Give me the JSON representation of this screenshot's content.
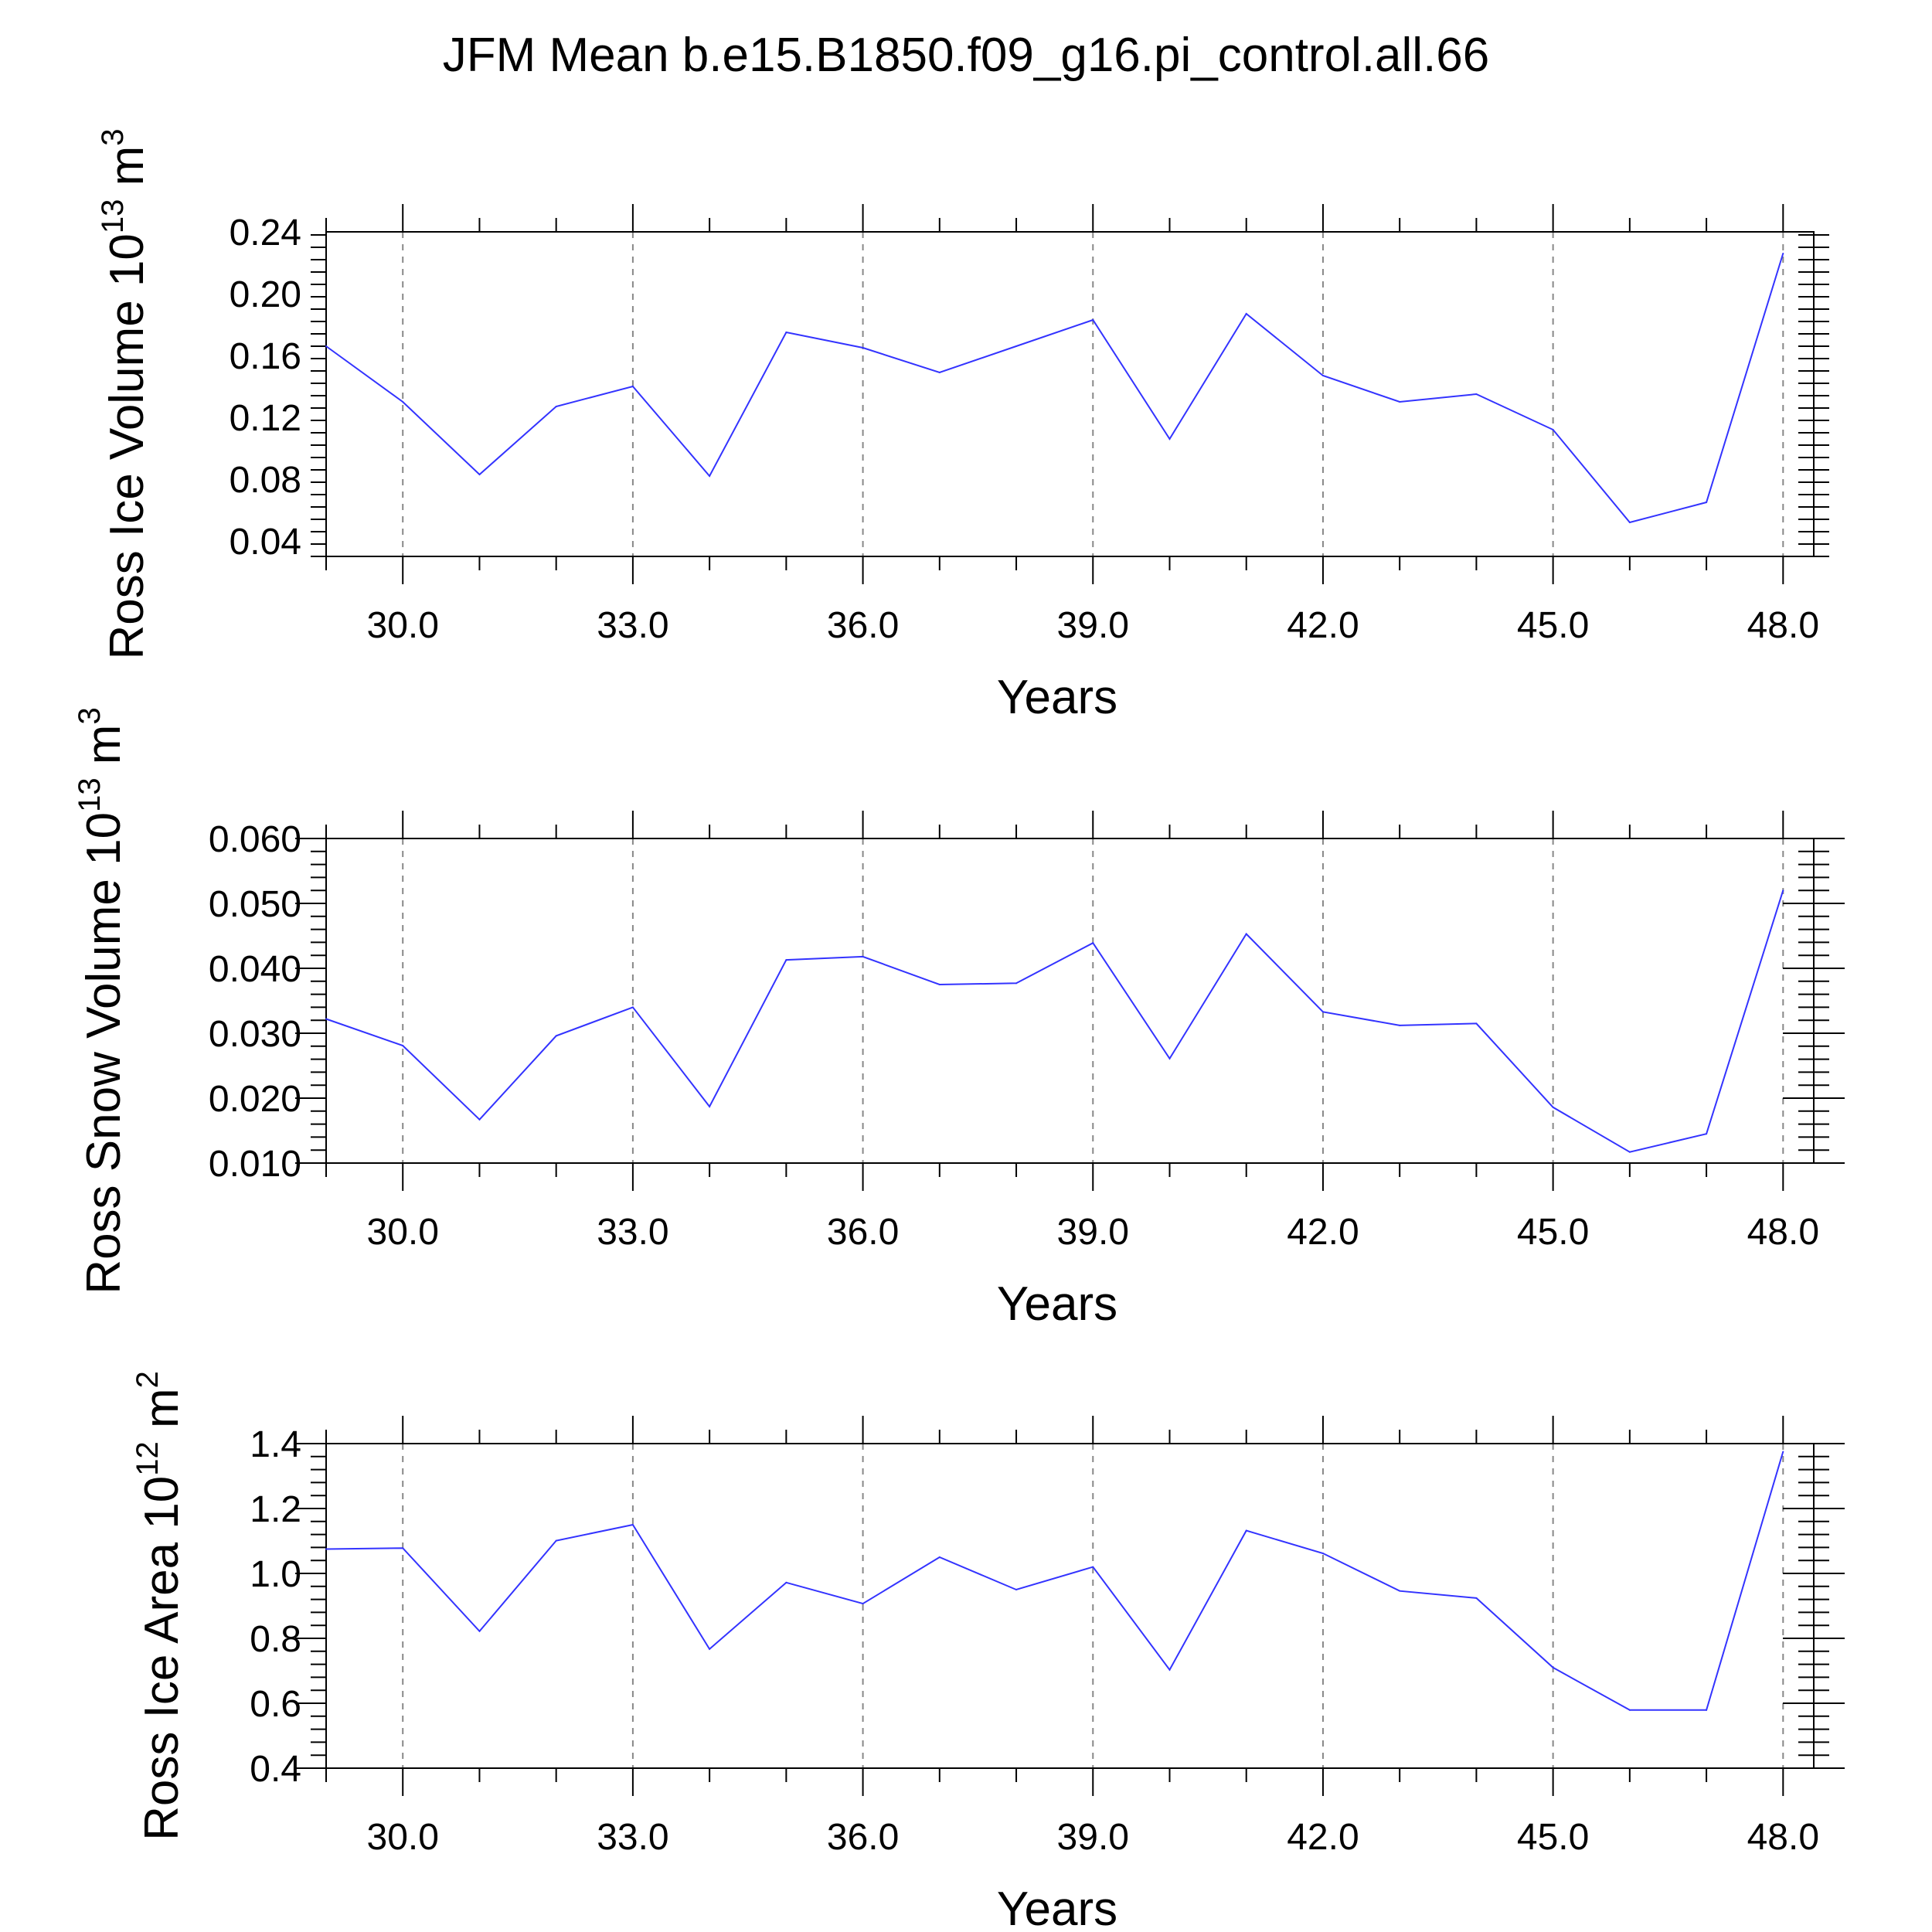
{
  "title": "JFM Mean b.e15.B1850.f09_g16.pi_control.all.66",
  "colors": {
    "line": "#3333ff",
    "axis": "#000000",
    "grid": "#888888"
  },
  "chart_data": [
    {
      "type": "line",
      "ylabel": "Ross Ice Volume 10",
      "ylabel_exp": "13",
      "ylabel_unit": " m",
      "ylabel_unit_exp": "3",
      "xlabel": "Years",
      "xlim": [
        29,
        48.4
      ],
      "ylim": [
        0.03,
        0.24
      ],
      "xticks": [
        30,
        33,
        36,
        39,
        42,
        45,
        48
      ],
      "xtick_labels": [
        "30.0",
        "33.0",
        "36.0",
        "39.0",
        "42.0",
        "45.0",
        "48.0"
      ],
      "yticks": [
        0.04,
        0.08,
        0.12,
        0.16,
        0.2,
        0.24
      ],
      "ytick_labels": [
        "0.04",
        "0.08",
        "0.12",
        "0.16",
        "0.20",
        "0.24"
      ],
      "x": [
        29,
        30,
        31,
        32,
        33,
        34,
        35,
        36,
        37,
        38,
        39,
        40,
        41,
        42,
        43,
        44,
        45,
        46,
        47,
        48
      ],
      "series": [
        {
          "name": "Ross Ice Volume",
          "values": [
            0.166,
            0.13,
            0.083,
            0.127,
            0.14,
            0.082,
            0.175,
            0.165,
            0.149,
            0.166,
            0.183,
            0.106,
            0.187,
            0.147,
            0.13,
            0.135,
            0.112,
            0.052,
            0.065,
            0.226
          ]
        }
      ]
    },
    {
      "type": "line",
      "ylabel": "Ross Snow Volume 10",
      "ylabel_exp": "13",
      "ylabel_unit": " m",
      "ylabel_unit_exp": "3",
      "xlabel": "Years",
      "xlim": [
        29,
        48.4
      ],
      "ylim": [
        0.01,
        0.06
      ],
      "xticks": [
        30,
        33,
        36,
        39,
        42,
        45,
        48
      ],
      "xtick_labels": [
        "30.0",
        "33.0",
        "36.0",
        "39.0",
        "42.0",
        "45.0",
        "48.0"
      ],
      "yticks": [
        0.01,
        0.02,
        0.03,
        0.04,
        0.05,
        0.06
      ],
      "ytick_labels": [
        "0.010",
        "0.020",
        "0.030",
        "0.040",
        "0.050",
        "0.060"
      ],
      "x": [
        29,
        30,
        31,
        32,
        33,
        34,
        35,
        36,
        37,
        38,
        39,
        40,
        41,
        42,
        43,
        44,
        45,
        46,
        47,
        48
      ],
      "series": [
        {
          "name": "Ross Snow Volume",
          "values": [
            0.0322,
            0.0281,
            0.0167,
            0.0296,
            0.034,
            0.0187,
            0.0413,
            0.0418,
            0.0375,
            0.0377,
            0.0439,
            0.0261,
            0.0453,
            0.0333,
            0.0312,
            0.0315,
            0.0186,
            0.0117,
            0.0145,
            0.052
          ]
        }
      ]
    },
    {
      "type": "line",
      "ylabel": "Ross Ice Area 10",
      "ylabel_exp": "12",
      "ylabel_unit": " m",
      "ylabel_unit_exp": "2",
      "xlabel": "Years",
      "xlim": [
        29,
        48.4
      ],
      "ylim": [
        0.4,
        1.4
      ],
      "xticks": [
        30,
        33,
        36,
        39,
        42,
        45,
        48
      ],
      "xtick_labels": [
        "30.0",
        "33.0",
        "36.0",
        "39.0",
        "42.0",
        "45.0",
        "48.0"
      ],
      "yticks": [
        0.4,
        0.6,
        0.8,
        1.0,
        1.2,
        1.4
      ],
      "ytick_labels": [
        "0.4",
        "0.6",
        "0.8",
        "1.0",
        "1.2",
        "1.4"
      ],
      "x": [
        29,
        30,
        31,
        32,
        33,
        34,
        35,
        36,
        37,
        38,
        39,
        40,
        41,
        42,
        43,
        44,
        45,
        46,
        47,
        48
      ],
      "series": [
        {
          "name": "Ross Ice Area",
          "values": [
            1.075,
            1.078,
            0.822,
            1.101,
            1.15,
            0.767,
            0.972,
            0.907,
            1.05,
            0.95,
            1.02,
            0.703,
            1.132,
            1.062,
            0.946,
            0.924,
            0.71,
            0.579,
            0.579,
            1.375
          ]
        }
      ]
    }
  ]
}
